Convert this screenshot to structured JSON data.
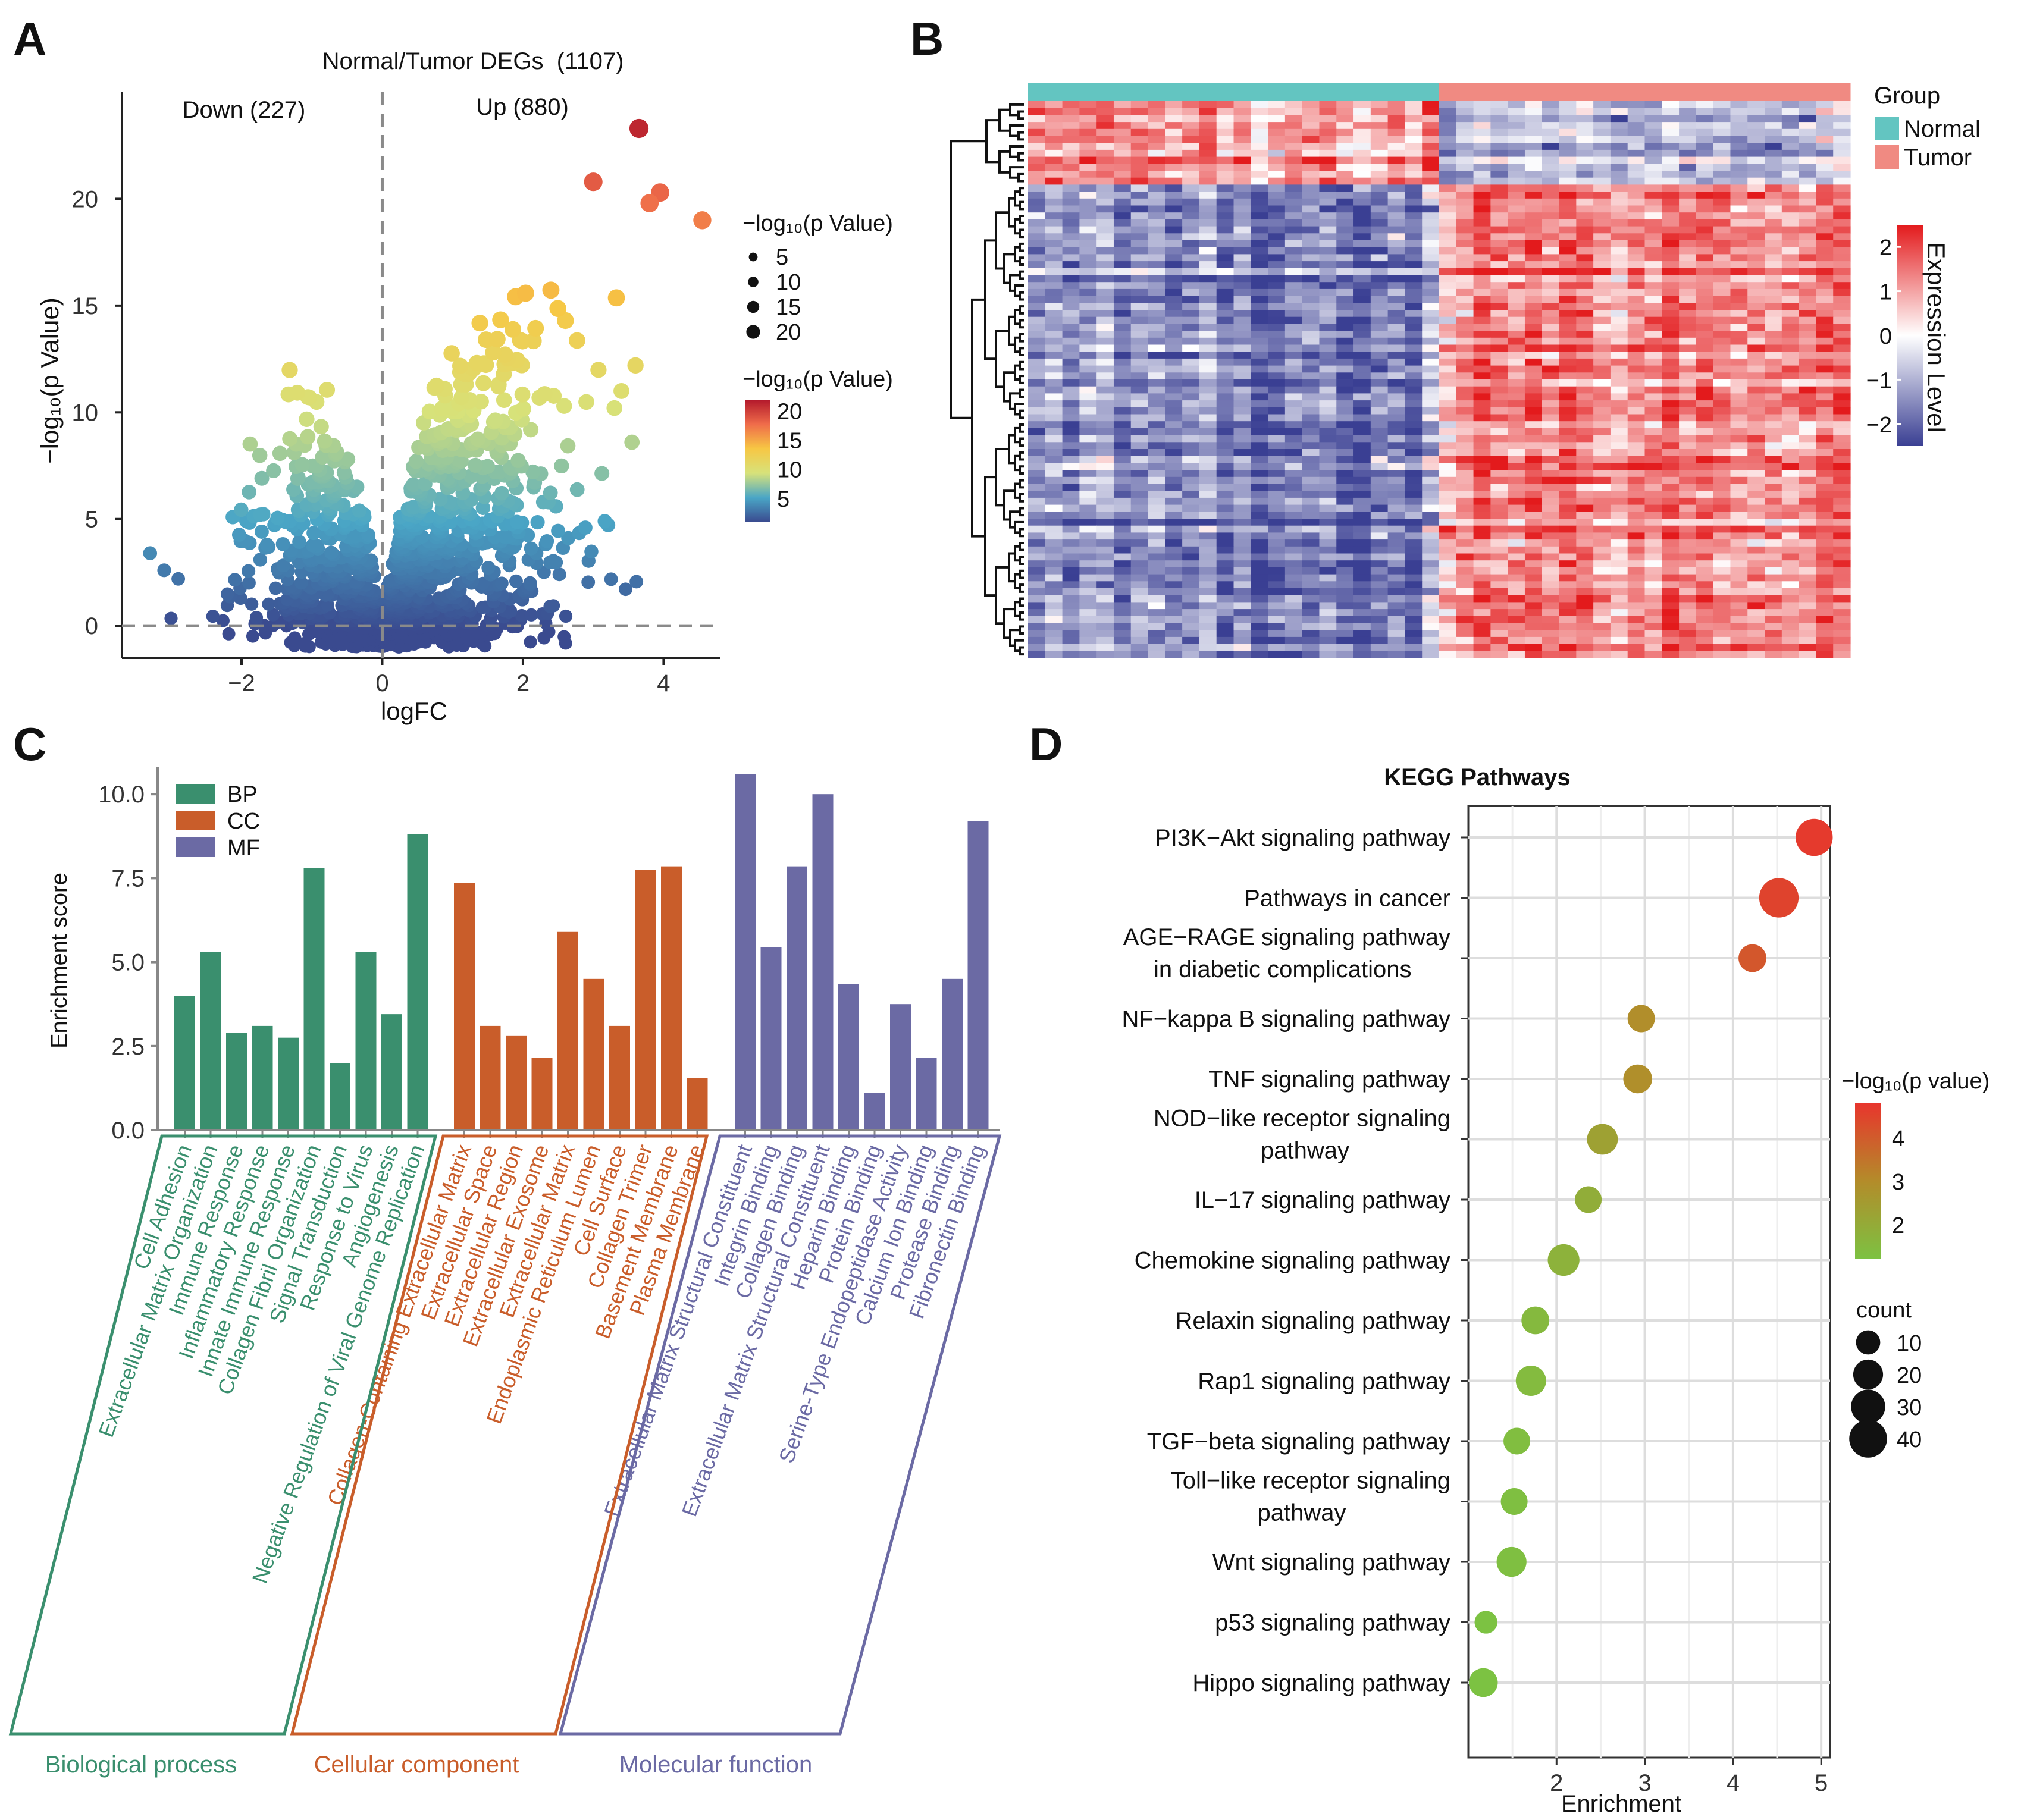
{
  "panel_letters": [
    "A",
    "B",
    "C",
    "D"
  ],
  "colors": {
    "normal": "#63c5c1",
    "tumor": "#f08a82",
    "heat_low": "#3a3f93",
    "heat_mid": "#ffffff",
    "heat_high": "#e31a1c",
    "bp": "#3a8f6e",
    "cc": "#c95d2a",
    "mf": "#6b6aa4",
    "kegg_low": "#7cc242",
    "kegg_mid": "#b38c2a",
    "kegg_high": "#e8352d",
    "grid": "#dddddd",
    "axis": "#444444"
  },
  "chart_data": [
    {
      "id": "A",
      "type": "scatter",
      "title": "Normal/Tumor DEGs  (1107)",
      "down_label": "Down (227)",
      "up_label": "Up (880)",
      "xlabel": "logFC",
      "ylabel": "−log₁₀(p Value)",
      "xlim": [
        -3.7,
        4.8
      ],
      "ylim": [
        -1.5,
        25
      ],
      "xticks": [
        -2,
        0,
        2,
        4
      ],
      "yticks": [
        0,
        5,
        10,
        15,
        20
      ],
      "xtick_labels": [
        "−2",
        "0",
        "2",
        "4"
      ],
      "ytick_labels": [
        "0",
        "5",
        "10",
        "15",
        "20"
      ],
      "threshold_y": 0,
      "size_legend": {
        "title": "−log₁₀(p Value)",
        "values": [
          5,
          10,
          15,
          20
        ],
        "labels": [
          "5",
          "10",
          "15",
          "20"
        ]
      },
      "color_legend": {
        "title": "−log₁₀(p Value)",
        "values": [
          20,
          15,
          10,
          5
        ],
        "labels": [
          "20",
          "15",
          "10",
          "5"
        ]
      },
      "highlight_points": [
        {
          "x": 3.65,
          "y": 23.3
        },
        {
          "x": 3.0,
          "y": 20.8
        },
        {
          "x": 3.95,
          "y": 20.3
        },
        {
          "x": 3.8,
          "y": 19.8
        },
        {
          "x": 4.55,
          "y": 19.0
        },
        {
          "x": 3.6,
          "y": 12.2
        },
        {
          "x": 3.4,
          "y": 11.0
        },
        {
          "x": 3.3,
          "y": 10.2
        },
        {
          "x": 3.55,
          "y": 8.6
        },
        {
          "x": -3.3,
          "y": 3.4
        },
        {
          "x": -2.9,
          "y": 2.2
        },
        {
          "x": -3.1,
          "y": 2.6
        }
      ]
    },
    {
      "id": "B",
      "type": "heatmap",
      "group_title": "Group",
      "groups": [
        {
          "name": "Normal",
          "columns": 24
        },
        {
          "name": "Tumor",
          "columns": 24
        }
      ],
      "n_rows": 80,
      "upregulated_row_fraction": 0.15,
      "colorbar_title": "Expression Level",
      "colorbar_values": [
        2,
        1,
        0,
        -1,
        -2
      ],
      "colorbar_labels": [
        "2",
        "1",
        "0",
        "−1",
        "−2"
      ],
      "value_range": [
        -2.5,
        2.5
      ]
    },
    {
      "id": "C",
      "type": "bar",
      "ylabel": "Enrichment score",
      "ylim": [
        0,
        10.8
      ],
      "yticks": [
        0,
        2.5,
        5,
        7.5,
        10
      ],
      "ytick_labels": [
        "0.0",
        "2.5",
        "5.0",
        "7.5",
        "10.0"
      ],
      "legend": [
        "BP",
        "CC",
        "MF"
      ],
      "series": [
        {
          "name": "BP",
          "group_label": "Biological process",
          "categories": [
            "Cell Adhesion",
            "Extracellular Matrix Organization",
            "Immune Response",
            "Inflammatory Response",
            "Innate Immune Response",
            "Collagen Fibril Organization",
            "Signal Transduction",
            "Response to Virus",
            "Angiogenesis",
            "Negative Regulation of Viral Genome Replication"
          ],
          "values": [
            4.0,
            5.3,
            2.9,
            3.1,
            2.75,
            7.8,
            2.0,
            5.3,
            3.45,
            8.8
          ]
        },
        {
          "name": "CC",
          "group_label": "Cellular component",
          "categories": [
            "Collagen-Containing Extracellular Matrix",
            "Extracellular Space",
            "Extracellular Region",
            "Extracellular Exosome",
            "Extracellular Matrix",
            "Endoplasmic Reticulum Lumen",
            "Cell Surface",
            "Collagen Trimer",
            "Basement Membrane",
            "Plasma Membrane"
          ],
          "values": [
            7.35,
            3.1,
            2.8,
            2.15,
            5.9,
            4.5,
            3.1,
            7.75,
            7.85,
            1.55
          ]
        },
        {
          "name": "MF",
          "group_label": "Molecular function",
          "categories": [
            "Extracellular Matrix Structural Constituent",
            "Integrin Binding",
            "Collagen Binding",
            "Extracellular Matrix Structural Constituent",
            "Heparin Binding",
            "Protein Binding",
            "Serine-Type Endopeptidase Activity",
            "Calcium Ion Binding",
            "Protease Binding",
            "Fibronectin Binding"
          ],
          "values": [
            10.6,
            5.45,
            7.85,
            10.0,
            4.35,
            1.1,
            3.75,
            2.15,
            4.5,
            9.2
          ]
        }
      ]
    },
    {
      "id": "D",
      "type": "scatter",
      "title": "KEGG Pathways",
      "xlabel": "Enrichment",
      "xlim": [
        1.0,
        5.1
      ],
      "xticks": [
        2,
        3,
        4,
        5
      ],
      "xtick_labels": [
        "2",
        "3",
        "4",
        "5"
      ],
      "pathways": [
        {
          "name": [
            "PI3K−Akt signaling pathway"
          ],
          "enrichment": 4.92,
          "count": 38,
          "neglog10p": 4.7
        },
        {
          "name": [
            "Pathways in cancer"
          ],
          "enrichment": 4.52,
          "count": 45,
          "neglog10p": 4.5
        },
        {
          "name": [
            "AGE−RAGE signaling pathway",
            "in diabetic complications"
          ],
          "enrichment": 4.22,
          "count": 16,
          "neglog10p": 4.1
        },
        {
          "name": [
            "NF−kappa B signaling pathway"
          ],
          "enrichment": 2.96,
          "count": 15,
          "neglog10p": 2.95
        },
        {
          "name": [
            "TNF signaling pathway"
          ],
          "enrichment": 2.92,
          "count": 18,
          "neglog10p": 2.9
        },
        {
          "name": [
            "NOD−like receptor signaling",
            "pathway"
          ],
          "enrichment": 2.52,
          "count": 22,
          "neglog10p": 2.3
        },
        {
          "name": [
            "IL−17 signaling pathway"
          ],
          "enrichment": 2.36,
          "count": 14,
          "neglog10p": 1.9
        },
        {
          "name": [
            "Chemokine signaling pathway"
          ],
          "enrichment": 2.08,
          "count": 24,
          "neglog10p": 1.75
        },
        {
          "name": [
            "Relaxin signaling pathway"
          ],
          "enrichment": 1.76,
          "count": 16,
          "neglog10p": 1.5
        },
        {
          "name": [
            "Rap1 signaling pathway"
          ],
          "enrichment": 1.71,
          "count": 21,
          "neglog10p": 1.45
        },
        {
          "name": [
            "TGF−beta signaling pathway"
          ],
          "enrichment": 1.55,
          "count": 14,
          "neglog10p": 1.35
        },
        {
          "name": [
            "Toll−like receptor signaling",
            "pathway"
          ],
          "enrichment": 1.52,
          "count": 14,
          "neglog10p": 1.3
        },
        {
          "name": [
            "Wnt signaling pathway"
          ],
          "enrichment": 1.49,
          "count": 20,
          "neglog10p": 1.3
        },
        {
          "name": [
            "p53 signaling pathway"
          ],
          "enrichment": 1.2,
          "count": 8,
          "neglog10p": 1.2
        },
        {
          "name": [
            "Hippo signaling pathway"
          ],
          "enrichment": 1.17,
          "count": 18,
          "neglog10p": 1.2
        }
      ],
      "color_legend": {
        "title": "−log₁₀(p value)",
        "values": [
          4,
          3,
          2
        ],
        "labels": [
          "4",
          "3",
          "2"
        ],
        "range": [
          1.2,
          4.8
        ]
      },
      "size_legend": {
        "title": "count",
        "values": [
          10,
          20,
          30,
          40
        ],
        "labels": [
          "10",
          "20",
          "30",
          "40"
        ]
      }
    }
  ]
}
